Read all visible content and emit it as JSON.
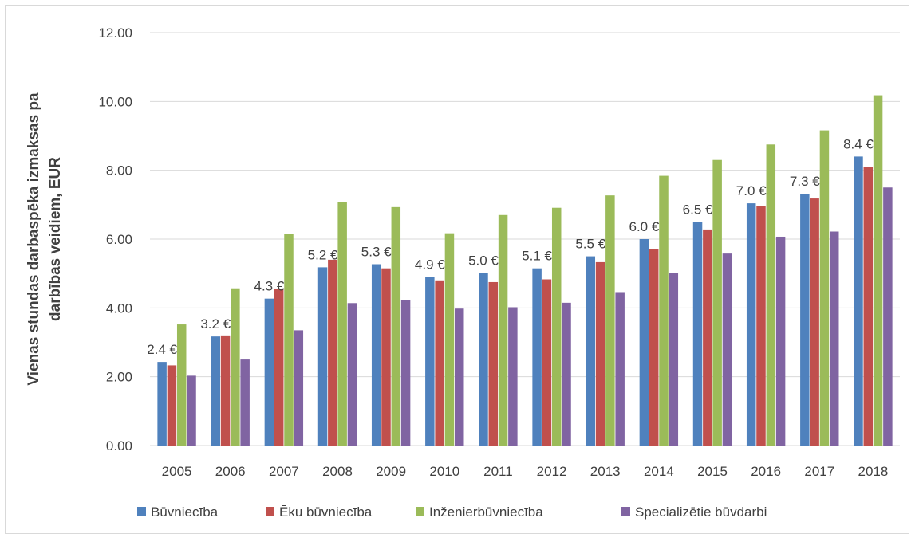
{
  "chart_data": {
    "type": "bar",
    "ylabel_lines": [
      "Vienas stundas darbaspēka izmaksas pa",
      "darbības veidiem, EUR"
    ],
    "ylim": [
      0,
      12
    ],
    "y_ticks": [
      "0.00",
      "2.00",
      "4.00",
      "6.00",
      "8.00",
      "10.00",
      "12.00"
    ],
    "grid": true,
    "legend_position": "bottom",
    "categories": [
      "2005",
      "2006",
      "2007",
      "2008",
      "2009",
      "2010",
      "2011",
      "2012",
      "2013",
      "2014",
      "2015",
      "2016",
      "2017",
      "2018"
    ],
    "series": [
      {
        "name": "Būvniecība",
        "color": "#4f81bd",
        "values": [
          2.43,
          3.17,
          4.27,
          5.18,
          5.27,
          4.9,
          5.02,
          5.15,
          5.5,
          6.0,
          6.5,
          7.04,
          7.32,
          8.4
        ]
      },
      {
        "name": "Ēku būvniecība",
        "color": "#c0504d",
        "values": [
          2.33,
          3.2,
          4.55,
          5.4,
          5.15,
          4.8,
          4.75,
          4.83,
          5.33,
          5.72,
          6.28,
          6.97,
          7.18,
          8.1
        ]
      },
      {
        "name": "Inženierbūvniecība",
        "color": "#9bbb59",
        "values": [
          3.52,
          4.57,
          6.14,
          7.07,
          6.93,
          6.17,
          6.7,
          6.91,
          7.27,
          7.84,
          8.3,
          8.75,
          9.16,
          10.18
        ]
      },
      {
        "name": "Specializētie būvdarbi",
        "color": "#8064a2",
        "values": [
          2.03,
          2.5,
          3.35,
          4.14,
          4.23,
          3.98,
          4.02,
          4.15,
          4.46,
          5.02,
          5.58,
          6.07,
          6.22,
          7.5
        ]
      }
    ],
    "data_labels": [
      "2.4 €",
      "3.2 €",
      "4.3 €",
      "5.2 €",
      "5.3 €",
      "4.9 €",
      "5.0 €",
      "5.1 €",
      "5.5 €",
      "6.0 €",
      "6.5 €",
      "7.0 €",
      "7.3 €",
      "8.4 €"
    ]
  }
}
